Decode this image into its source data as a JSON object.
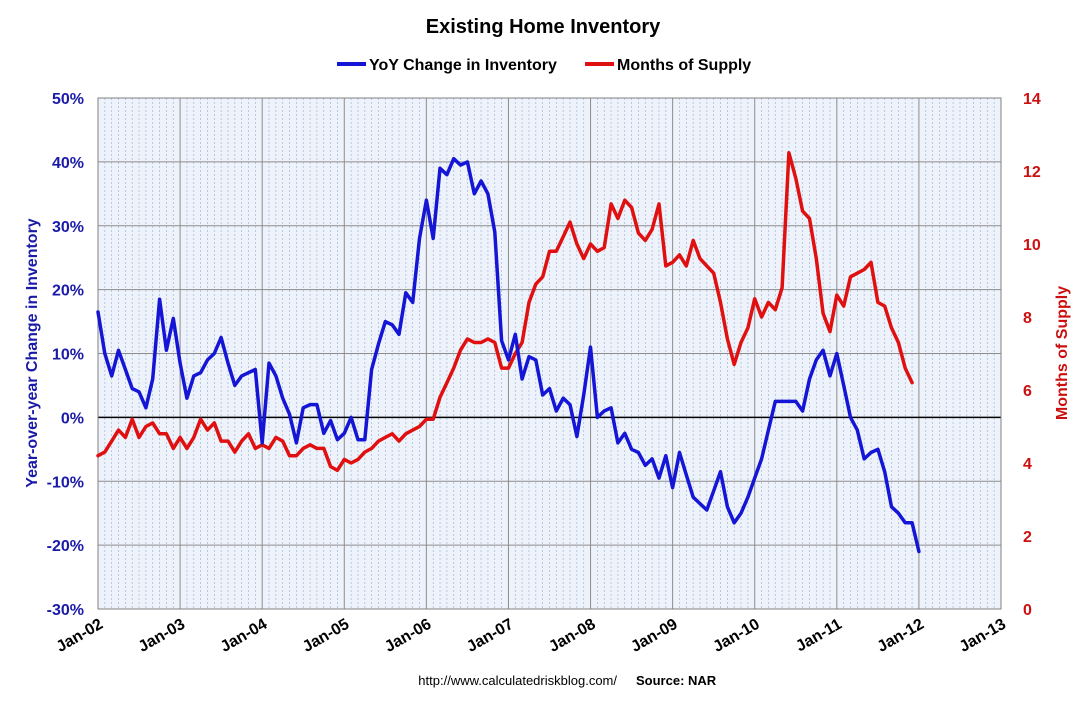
{
  "chart_data": {
    "type": "line",
    "title": "Existing Home Inventory",
    "y_left_label": "Year-over-year Change in Inventory",
    "y_right_label": "Months of Supply",
    "y_left_lim": [
      -30,
      50
    ],
    "y_left_ticks": [
      "-30%",
      "-20%",
      "-10%",
      "0%",
      "10%",
      "20%",
      "30%",
      "40%",
      "50%"
    ],
    "y_right_lim": [
      0,
      14
    ],
    "y_right_ticks": [
      "0",
      "2",
      "4",
      "6",
      "8",
      "10",
      "12",
      "14"
    ],
    "x_ticks": [
      "Jan-02",
      "Jan-03",
      "Jan-04",
      "Jan-05",
      "Jan-06",
      "Jan-07",
      "Jan-08",
      "Jan-09",
      "Jan-10",
      "Jan-11",
      "Jan-12",
      "Jan-13"
    ],
    "x_range": [
      "Jan-02",
      "Jan-13"
    ],
    "grid": true,
    "legend_position": "top-center",
    "footer": {
      "url": "http://www.calculatedriskblog.com/",
      "source": "Source: NAR"
    },
    "colors": {
      "yoy": "#1515d6",
      "supply": "#e01010",
      "left_axis": "#1a1aa8",
      "right_axis": "#cc1010"
    },
    "series": [
      {
        "name": "YoY Change in Inventory",
        "axis": "left",
        "start": "Jan-02",
        "values": [
          16.5,
          10,
          6.5,
          10.5,
          7.5,
          4.5,
          4,
          1.5,
          6,
          18.5,
          10.5,
          15.5,
          8.5,
          3,
          6.5,
          7,
          9,
          10,
          12.5,
          8.5,
          5,
          6.5,
          7,
          7.5,
          -4,
          8.5,
          6.5,
          3,
          0.5,
          -4,
          1.5,
          2,
          2,
          -2.5,
          -0.5,
          -3.5,
          -2.5,
          0,
          -3.5,
          -3.5,
          7.5,
          11.5,
          15,
          14.5,
          13,
          19.5,
          18,
          28,
          34,
          28,
          39,
          38,
          40.5,
          39.5,
          40,
          35,
          37,
          35,
          29,
          12,
          9,
          13,
          6,
          9.5,
          9,
          3.5,
          4.5,
          1,
          3,
          2,
          -3,
          3.5,
          11,
          0,
          1,
          1.5,
          -4,
          -2.5,
          -5,
          -5.5,
          -7.5,
          -6.5,
          -9.5,
          -6,
          -11,
          -5.5,
          -9,
          -12.5,
          -13.5,
          -14.5,
          -11.5,
          -8.5,
          -14,
          -16.5,
          -15,
          -12.5,
          -9.5,
          -6.5,
          -2,
          2.5,
          2.5,
          2.5,
          2.5,
          1,
          6,
          9,
          10.5,
          6.5,
          10,
          5,
          0,
          -2,
          -6.5,
          -5.5,
          -5,
          -8.5,
          -14,
          -15,
          -16.5,
          -16.5,
          -21
        ]
      },
      {
        "name": "Months of Supply",
        "axis": "right",
        "start": "Jan-02",
        "values": [
          4.2,
          4.3,
          4.6,
          4.9,
          4.7,
          5.2,
          4.7,
          5.0,
          5.1,
          4.8,
          4.8,
          4.4,
          4.7,
          4.4,
          4.7,
          5.2,
          4.9,
          5.1,
          4.6,
          4.6,
          4.3,
          4.6,
          4.8,
          4.4,
          4.5,
          4.4,
          4.7,
          4.6,
          4.2,
          4.2,
          4.4,
          4.5,
          4.4,
          4.4,
          3.9,
          3.8,
          4.1,
          4.0,
          4.1,
          4.3,
          4.4,
          4.6,
          4.7,
          4.8,
          4.6,
          4.8,
          4.9,
          5.0,
          5.2,
          5.2,
          5.8,
          6.2,
          6.6,
          7.1,
          7.4,
          7.3,
          7.3,
          7.4,
          7.3,
          6.6,
          6.6,
          7.0,
          7.3,
          8.4,
          8.9,
          9.1,
          9.8,
          9.8,
          10.2,
          10.6,
          10.0,
          9.6,
          10.0,
          9.8,
          9.9,
          11.1,
          10.7,
          11.2,
          11.0,
          10.3,
          10.1,
          10.4,
          11.1,
          9.4,
          9.5,
          9.7,
          9.4,
          10.1,
          9.6,
          9.4,
          9.2,
          8.4,
          7.4,
          6.7,
          7.3,
          7.7,
          8.5,
          8.0,
          8.4,
          8.2,
          8.8,
          12.5,
          11.8,
          10.9,
          10.7,
          9.6,
          8.1,
          7.6,
          8.6,
          8.3,
          9.1,
          9.2,
          9.3,
          9.5,
          8.4,
          8.3,
          7.7,
          7.3,
          6.6,
          6.2
        ]
      }
    ]
  }
}
